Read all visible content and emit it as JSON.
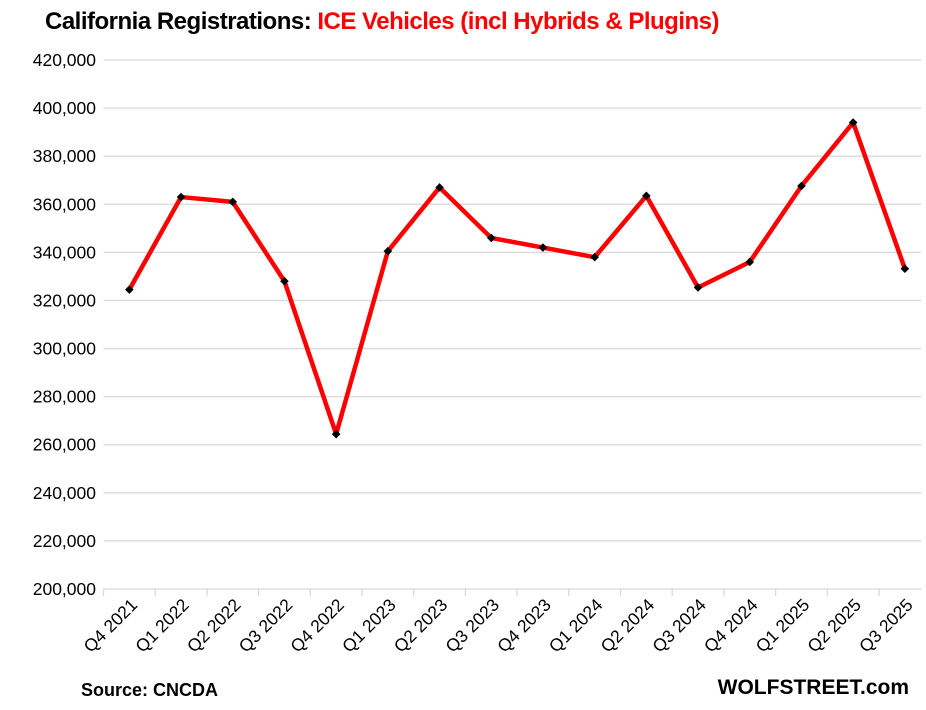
{
  "title": {
    "black": "California Registrations: ",
    "red": "ICE Vehicles (incl Hybrids & Plugins)"
  },
  "footer": {
    "source": "Source: CNCDA",
    "watermark": "WOLFSTREET.com"
  },
  "colors": {
    "line": "#ff0000",
    "title_accent": "#ff0000",
    "marker": "#000000",
    "gridline": "#d9d9d9",
    "text": "#000000"
  },
  "chart_data": {
    "type": "line",
    "title": "California Registrations: ICE Vehicles (incl Hybrids & Plugins)",
    "categories": [
      "Q4 2021",
      "Q1 2022",
      "Q2 2022",
      "Q3 2022",
      "Q4 2022",
      "Q1 2023",
      "Q2 2023",
      "Q3 2023",
      "Q4 2023",
      "Q1 2024",
      "Q2 2024",
      "Q3 2024",
      "Q4 2024",
      "Q1 2025",
      "Q2 2025",
      "Q3 2025"
    ],
    "series": [
      {
        "name": "ICE Vehicles (incl Hybrids & Plugins)",
        "color": "#ff0000",
        "values": [
          324500,
          363000,
          361000,
          328000,
          264400,
          340500,
          367000,
          346000,
          342000,
          338000,
          363500,
          325400,
          336000,
          367600,
          394000,
          333200
        ]
      }
    ],
    "xlabel": "",
    "ylabel": "",
    "ylim": [
      200000,
      420000
    ],
    "ytick_step": 20000,
    "ytick_labels": [
      "200,000",
      "220,000",
      "240,000",
      "260,000",
      "280,000",
      "300,000",
      "320,000",
      "340,000",
      "360,000",
      "380,000",
      "400,000",
      "420,000"
    ],
    "grid": true,
    "legend": false,
    "x_tick_rotation": 45,
    "marker": "diamond",
    "marker_color": "#000000",
    "line_width": 4.5,
    "gridline_color": "#d9d9d9"
  }
}
